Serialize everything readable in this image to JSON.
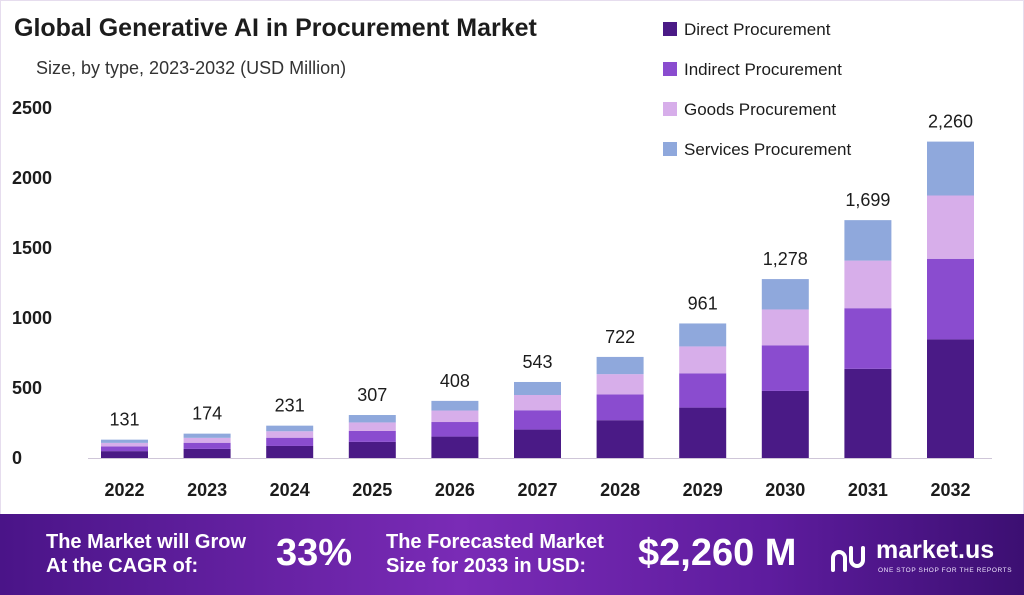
{
  "chart_data": {
    "type": "bar",
    "stacked": true,
    "title": "Global Generative AI in Procurement Market",
    "subtitle": "Size, by type, 2023-2032 (USD Million)",
    "categories": [
      "2022",
      "2023",
      "2024",
      "2025",
      "2026",
      "2027",
      "2028",
      "2029",
      "2030",
      "2031",
      "2032"
    ],
    "series": [
      {
        "name": "Direct Procurement",
        "color": "#4a1a86",
        "values": [
          49,
          65,
          86,
          115,
          153,
          203,
          270,
          360,
          479,
          637,
          847
        ]
      },
      {
        "name": "Indirect Procurement",
        "color": "#8a4ccf",
        "values": [
          33,
          44,
          59,
          78,
          104,
          138,
          184,
          245,
          326,
          433,
          576
        ]
      },
      {
        "name": "Goods Procurement",
        "color": "#d7aeea",
        "values": [
          26,
          35,
          46,
          61,
          82,
          109,
          145,
          192,
          256,
          340,
          452
        ]
      },
      {
        "name": "Services Procurement",
        "color": "#8fa8dc",
        "values": [
          23,
          30,
          40,
          53,
          69,
          93,
          123,
          164,
          217,
          289,
          385
        ]
      }
    ],
    "totals": [
      "131",
      "174",
      "231",
      "307",
      "408",
      "543",
      "722",
      "961",
      "1,278",
      "1,699",
      "2,260"
    ],
    "yticks": [
      "0",
      "500",
      "1000",
      "1500",
      "2000",
      "2500"
    ],
    "ylim": [
      0,
      2500
    ],
    "legend_position": "top-right"
  },
  "banner": {
    "cagr_line1": "The Market will Grow",
    "cagr_line2": "At the CAGR of:",
    "cagr_value": "33%",
    "forecast_line1": "The Forecasted Market",
    "forecast_line2": "Size for 2033 in USD:",
    "forecast_value": "$2,260 M",
    "brand": "market.us",
    "tagline": "ONE STOP SHOP FOR THE REPORTS"
  }
}
